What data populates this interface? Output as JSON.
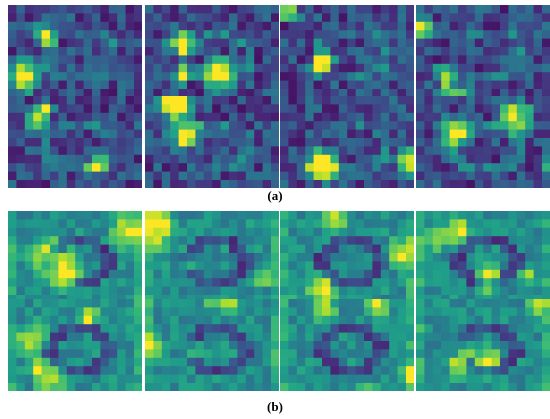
{
  "figure": {
    "panels": [
      {
        "label": "(a)",
        "palette": "viridis",
        "style": "sparse",
        "tiles": [
          {
            "seed": 11
          },
          {
            "seed": 23
          },
          {
            "seed": 37
          },
          {
            "seed": 41
          },
          {
            "seed": 53
          },
          {
            "seed": 67
          },
          {
            "seed": 71
          },
          {
            "seed": 89
          }
        ]
      },
      {
        "label": "(b)",
        "palette": "viridis",
        "style": "dense",
        "tiles": [
          {
            "seed": 101
          },
          {
            "seed": 113
          },
          {
            "seed": 127
          },
          {
            "seed": 131
          },
          {
            "seed": 149
          },
          {
            "seed": 157
          },
          {
            "seed": 163
          },
          {
            "seed": 179
          }
        ]
      }
    ]
  }
}
